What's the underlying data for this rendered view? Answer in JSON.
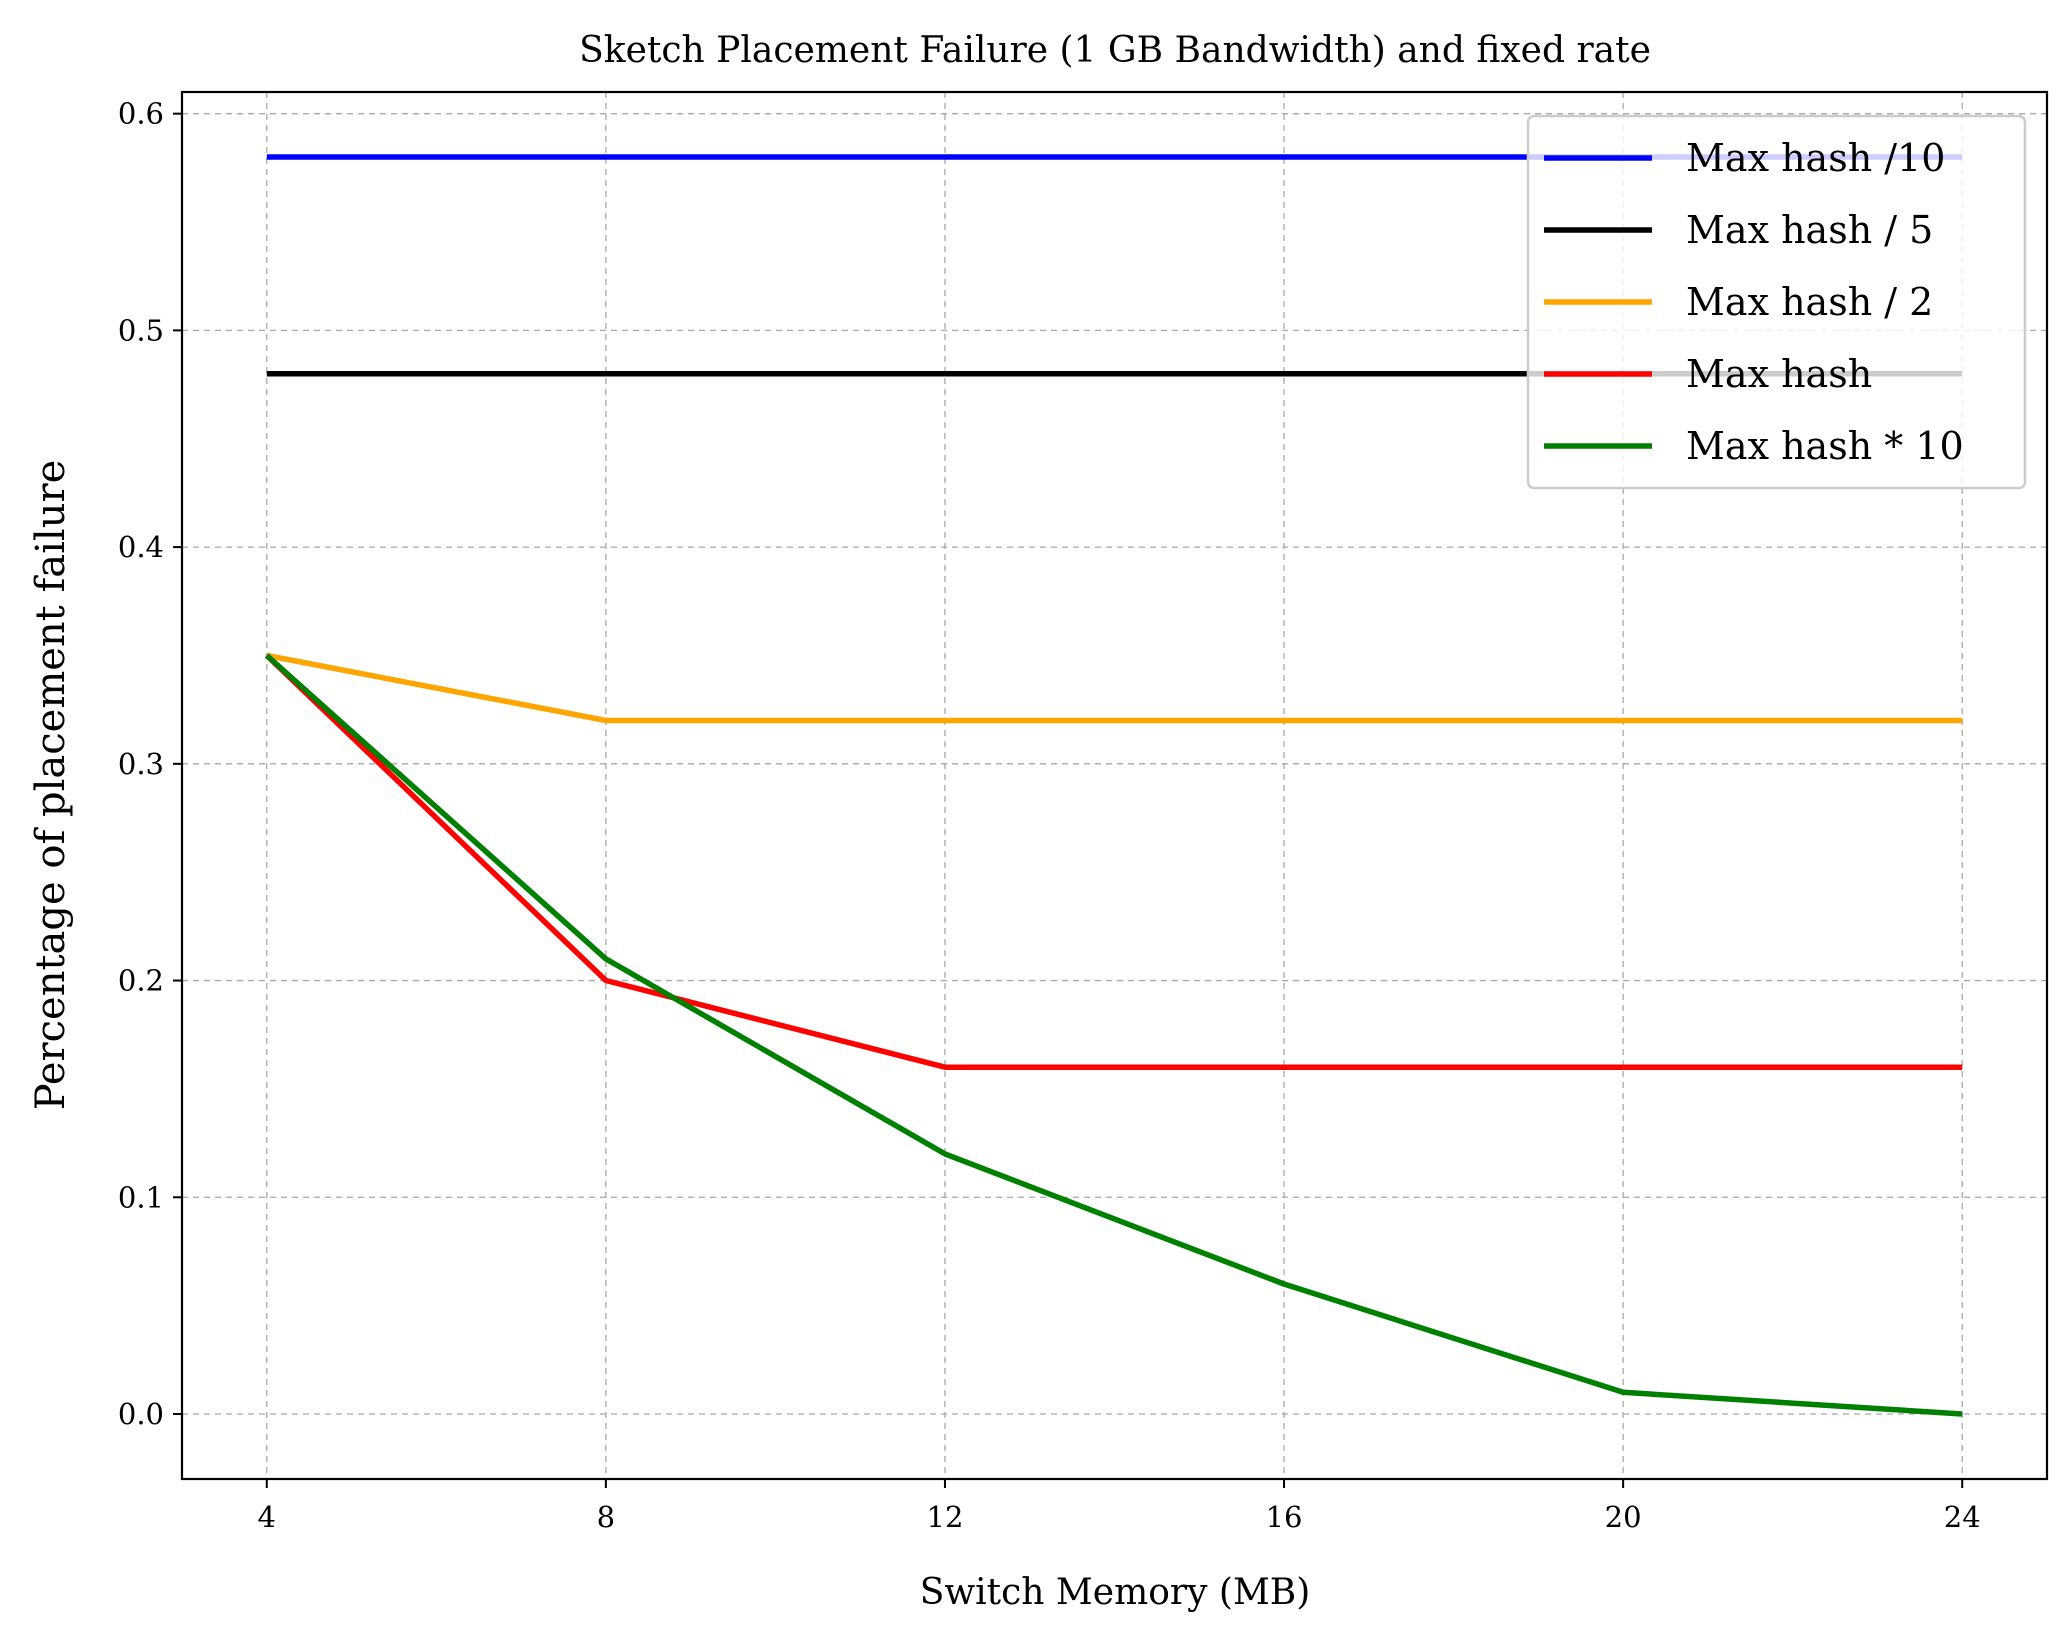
{
  "chart_data": {
    "type": "line",
    "title": "Sketch Placement Failure (1 GB Bandwidth) and fixed rate",
    "xlabel": "Switch Memory (MB)",
    "ylabel": "Percentage of placement failure",
    "x": [
      4,
      8,
      12,
      16,
      20,
      24
    ],
    "xticks": [
      "4",
      "8",
      "12",
      "16",
      "20",
      "24"
    ],
    "yticks": [
      "0.0",
      "0.1",
      "0.2",
      "0.3",
      "0.4",
      "0.5",
      "0.6"
    ],
    "xlim": [
      3,
      25
    ],
    "ylim": [
      -0.03,
      0.61
    ],
    "grid": true,
    "legend_position": "top-right",
    "series": [
      {
        "name": "Max hash /10",
        "color": "#0000ff",
        "values": [
          0.58,
          0.58,
          0.58,
          0.58,
          0.58,
          0.58
        ]
      },
      {
        "name": "Max hash / 5",
        "color": "#000000",
        "values": [
          0.48,
          0.48,
          0.48,
          0.48,
          0.48,
          0.48
        ]
      },
      {
        "name": "Max hash / 2",
        "color": "#ffa500",
        "values": [
          0.35,
          0.32,
          0.32,
          0.32,
          0.32,
          0.32
        ]
      },
      {
        "name": "Max hash",
        "color": "#ff0000",
        "values": [
          0.35,
          0.2,
          0.16,
          0.16,
          0.16,
          0.16
        ]
      },
      {
        "name": "Max hash * 10",
        "color": "#008000",
        "values": [
          0.35,
          0.21,
          0.12,
          0.06,
          0.01,
          0.0
        ]
      }
    ]
  }
}
